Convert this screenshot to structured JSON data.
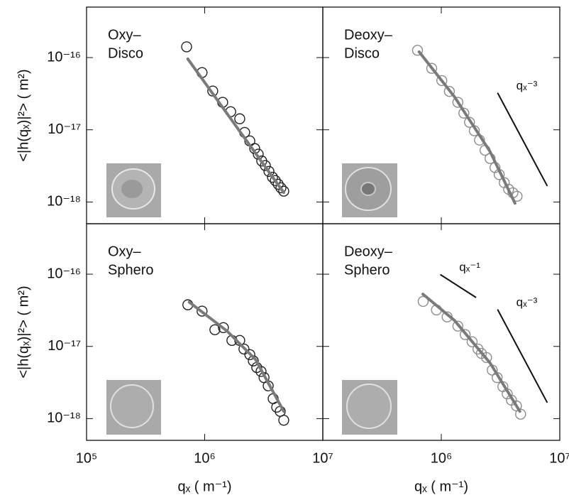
{
  "chart_data": [
    {
      "type": "scatter",
      "panel_label": [
        "Oxy–",
        "Disco"
      ],
      "y_label": "<|h(qₓ)|²> ( m²)",
      "log_x": true,
      "log_y": true,
      "ylim": [
        5e-19,
        5e-16
      ],
      "yticks": [
        {
          "value": 1e-16,
          "label": "10⁻¹⁶"
        },
        {
          "value": 1e-17,
          "label": "10⁻¹⁷"
        },
        {
          "value": 1e-18,
          "label": "10⁻¹⁸"
        }
      ],
      "series": [
        {
          "type": "scatter",
          "color": "#222222",
          "x": [
            703000,
            950000,
            1170000,
            1420000,
            1660000,
            1980000,
            2180000,
            2410000,
            2650000,
            2840000,
            3040000,
            3260000,
            3500000,
            3750000,
            3960000,
            4190000,
            4420000,
            4670000
          ],
          "values": [
            1.41e-16,
            6.2e-17,
            3.44e-17,
            2.4e-17,
            1.78e-17,
            1.42e-17,
            9.2e-18,
            7e-18,
            5.5e-18,
            4.6e-18,
            3.7e-18,
            3.2e-18,
            2.65e-18,
            2.2e-18,
            1.98e-18,
            1.76e-18,
            1.57e-18,
            1.41e-18
          ]
        },
        {
          "type": "line",
          "color": "#7a7a7a",
          "x": [
            720000,
            4670000
          ],
          "values": [
            9.6e-17,
            1.35e-18
          ]
        }
      ]
    },
    {
      "type": "scatter",
      "panel_label": [
        "Deoxy–",
        "Disco"
      ],
      "log_x": true,
      "log_y": true,
      "series": [
        {
          "type": "scatter",
          "color": "#8c8c8c",
          "x": [
            630000,
            830000,
            1010000,
            1170000,
            1380000,
            1550000,
            1730000,
            1900000,
            2100000,
            2340000,
            2580000,
            2840000,
            3080000,
            3400000,
            3700000,
            4020000,
            4360000
          ],
          "values": [
            1.26e-16,
            7.1e-17,
            4.8e-17,
            3.4e-17,
            2.4e-17,
            1.7e-17,
            1.27e-17,
            9.7e-18,
            7.2e-18,
            5.2e-18,
            4e-18,
            3e-18,
            2.4e-18,
            1.85e-18,
            1.5e-18,
            1.34e-18,
            1.2e-18
          ]
        },
        {
          "type": "line",
          "color": "#7a7a7a",
          "x": [
            650000,
            1290000,
            2580000,
            4190000
          ],
          "values": [
            1.2e-16,
            2.87e-17,
            5e-18,
            9.6e-19
          ]
        },
        {
          "type": "reference",
          "color": "#111111",
          "label": "qₓ⁻³",
          "x": [
            3000000,
            7800000
          ],
          "values": [
            3.2e-17,
            1.69e-18
          ]
        }
      ]
    },
    {
      "type": "scatter",
      "panel_label": [
        "Oxy–",
        "Sphero"
      ],
      "y_label": "<|h(qₓ)|²> ( m²)",
      "x_label": "qₓ ( m⁻¹)",
      "log_x": true,
      "log_y": true,
      "xlim": [
        100000,
        10000000
      ],
      "ylim": [
        5e-19,
        5e-16
      ],
      "xticks": [
        {
          "value": 100000,
          "label": "10⁵"
        },
        {
          "value": 1000000,
          "label": "10⁶"
        },
        {
          "value": 10000000,
          "label": "10⁷"
        }
      ],
      "yticks": [
        {
          "value": 1e-16,
          "label": "10⁻¹⁶"
        },
        {
          "value": 1e-17,
          "label": "10⁻¹⁷"
        },
        {
          "value": 1e-18,
          "label": "10⁻¹⁸"
        }
      ],
      "series": [
        {
          "type": "scatter",
          "color": "#222222",
          "x": [
            720000,
            950000,
            1220000,
            1440000,
            1700000,
            1980000,
            2150000,
            2410000,
            2580000,
            2760000,
            3000000,
            3180000,
            3450000,
            3800000,
            4070000,
            4360000,
            4670000
          ],
          "values": [
            3.77e-17,
            3.08e-17,
            1.7e-17,
            1.82e-17,
            1.21e-17,
            1.21e-17,
            9.2e-18,
            7.7e-18,
            6.3e-18,
            5.1e-18,
            4.5e-18,
            3.7e-18,
            2.84e-18,
            1.89e-18,
            1.44e-18,
            1.26e-18,
            9.5e-19
          ]
        },
        {
          "type": "line",
          "color": "#7a7a7a",
          "x": [
            740000,
            1550000,
            2690000,
            4670000
          ],
          "values": [
            4.1e-17,
            1.63e-17,
            6.6e-18,
            1.26e-18
          ]
        }
      ]
    },
    {
      "type": "scatter",
      "panel_label": [
        "Deoxy–",
        "Sphero"
      ],
      "x_label": "qₓ ( m⁻¹)",
      "log_x": true,
      "log_y": true,
      "xlim": [
        100000,
        10000000
      ],
      "xticks": [
        {
          "value": 1000000,
          "label": "10⁶"
        },
        {
          "value": 10000000,
          "label": "10⁷"
        }
      ],
      "series": [
        {
          "type": "scatter",
          "color": "#8c8c8c",
          "x": [
            703000,
            910000,
            1120000,
            1380000,
            1590000,
            1820000,
            2040000,
            2180000,
            2410000,
            2690000,
            2960000,
            3310000,
            3600000,
            3910000,
            4310000,
            4670000
          ],
          "values": [
            4.2e-17,
            3.2e-17,
            2.56e-17,
            1.91e-17,
            1.46e-17,
            1.16e-17,
            9.2e-18,
            8e-18,
            7e-18,
            4.7e-18,
            3.7e-18,
            2.77e-18,
            2.2e-18,
            1.8e-18,
            1.5e-18,
            1.15e-18
          ]
        },
        {
          "type": "line",
          "color": "#7a7a7a",
          "x": [
            700000,
            1290000,
            2580000,
            4600000
          ],
          "values": [
            5.3e-17,
            2.29e-17,
            5.9e-18,
            1.26e-18
          ]
        },
        {
          "type": "reference",
          "color": "#111111",
          "label": "qₓ⁻¹",
          "x": [
            990000,
            1950000
          ],
          "values": [
            9.8e-17,
            4.8e-17
          ]
        },
        {
          "type": "reference",
          "color": "#111111",
          "label": "qₓ⁻³",
          "x": [
            3000000,
            7800000
          ],
          "values": [
            3.2e-17,
            1.69e-18
          ]
        }
      ]
    }
  ]
}
